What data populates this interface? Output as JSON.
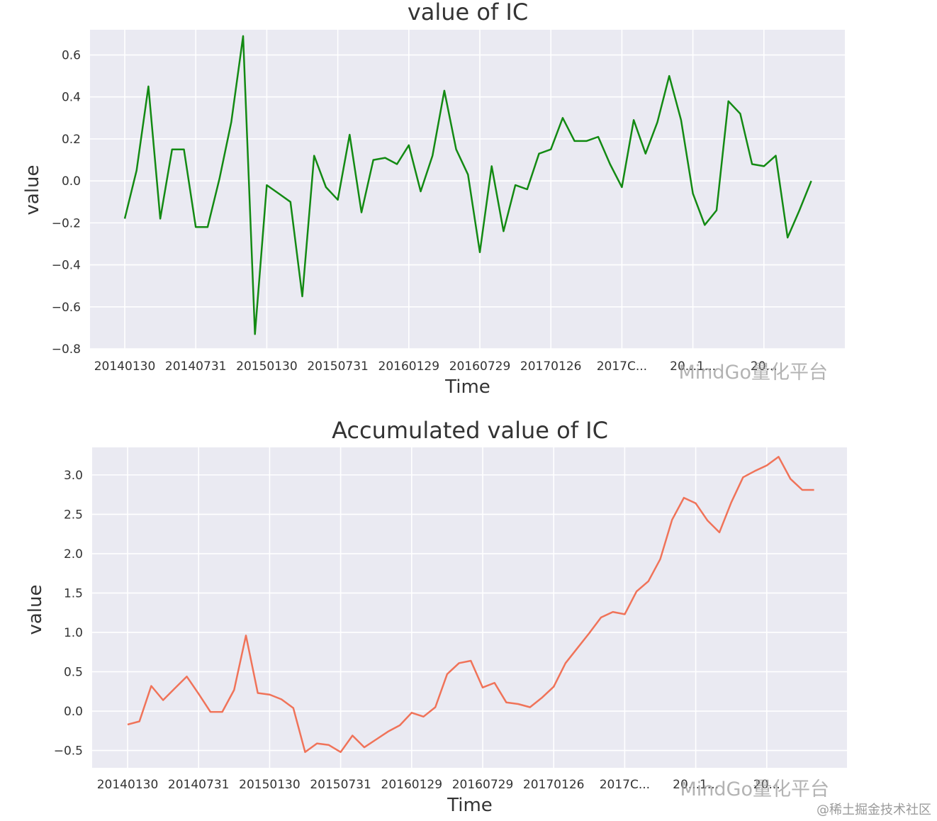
{
  "chart_data": [
    {
      "type": "line",
      "title": "value of IC",
      "xlabel": "Time",
      "ylabel": "value",
      "ylim": [
        -0.8,
        0.72
      ],
      "yticks": [
        -0.8,
        -0.6,
        -0.4,
        -0.2,
        0.0,
        0.2,
        0.4,
        0.6
      ],
      "ytick_labels": [
        "−0.8",
        "−0.6",
        "−0.4",
        "−0.2",
        "0.0",
        "0.2",
        "0.4",
        "0.6"
      ],
      "xtick_labels": [
        "20140130",
        "20140731",
        "20150130",
        "20150731",
        "20160129",
        "20160729",
        "20170126",
        "2017C...",
        "20...1...",
        "20..."
      ],
      "line_color": "#138a13",
      "grid": true,
      "background": "#eaeaf2",
      "series": [
        {
          "values": [
            -0.18,
            0.05,
            0.45,
            -0.18,
            0.15,
            0.15,
            -0.22,
            -0.22,
            0.01,
            0.28,
            0.69,
            -0.73,
            -0.02,
            -0.06,
            -0.1,
            -0.55,
            0.12,
            -0.03,
            -0.09,
            0.22,
            -0.15,
            0.1,
            0.11,
            0.08,
            0.17,
            -0.05,
            0.12,
            0.43,
            0.15,
            0.03,
            -0.34,
            0.07,
            -0.24,
            -0.02,
            -0.04,
            0.13,
            0.15,
            0.3,
            0.19,
            0.19,
            0.21,
            0.08,
            -0.03,
            0.29,
            0.13,
            0.28,
            0.5,
            0.29,
            -0.06,
            -0.21,
            -0.14,
            0.38,
            0.32,
            0.08,
            0.07,
            0.12,
            -0.27,
            -0.14,
            0.0
          ]
        }
      ]
    },
    {
      "type": "line",
      "title": "Accumulated value of IC",
      "xlabel": "Time",
      "ylabel": "value",
      "ylim": [
        -0.72,
        3.35
      ],
      "yticks": [
        -0.5,
        0.0,
        0.5,
        1.0,
        1.5,
        2.0,
        2.5,
        3.0
      ],
      "ytick_labels": [
        "−0.5",
        "0.0",
        "0.5",
        "1.0",
        "1.5",
        "2.0",
        "2.5",
        "3.0"
      ],
      "xtick_labels": [
        "20140130",
        "20140731",
        "20150130",
        "20150731",
        "20160129",
        "20160729",
        "20170126",
        "2017C...",
        "20...1...",
        "20..."
      ],
      "line_color": "#f07359",
      "grid": true,
      "background": "#eaeaf2",
      "series": [
        {
          "values": [
            -0.17,
            -0.13,
            0.32,
            0.14,
            0.29,
            0.44,
            0.22,
            -0.01,
            -0.01,
            0.27,
            0.96,
            0.23,
            0.21,
            0.15,
            0.04,
            -0.52,
            -0.41,
            -0.43,
            -0.52,
            -0.31,
            -0.46,
            -0.36,
            -0.26,
            -0.18,
            -0.02,
            -0.07,
            0.05,
            0.47,
            0.61,
            0.64,
            0.3,
            0.36,
            0.11,
            0.09,
            0.05,
            0.17,
            0.31,
            0.61,
            0.8,
            0.99,
            1.19,
            1.26,
            1.23,
            1.52,
            1.65,
            1.93,
            2.43,
            2.71,
            2.64,
            2.42,
            2.27,
            2.65,
            2.97,
            3.05,
            3.12,
            3.23,
            2.95,
            2.81,
            2.81
          ]
        }
      ]
    }
  ],
  "watermarks": {
    "chart1": "MindGo量化平台",
    "chart2": "MindGo量化平台",
    "corner": "@稀土掘金技术社区"
  }
}
